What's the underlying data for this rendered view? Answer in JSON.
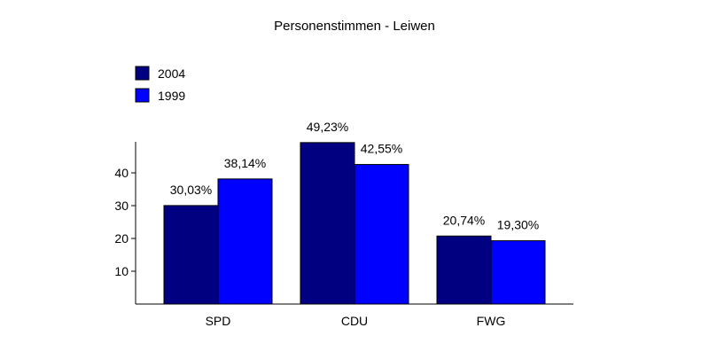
{
  "chart_data": {
    "type": "bar",
    "title": "Personenstimmen - Leiwen",
    "categories": [
      "SPD",
      "CDU",
      "FWG"
    ],
    "series": [
      {
        "name": "2004",
        "values": [
          30.03,
          49.23,
          20.74
        ],
        "labels": [
          "30,03%",
          "49,23%",
          "20,74%"
        ],
        "color": "#000080"
      },
      {
        "name": "1999",
        "values": [
          38.14,
          42.55,
          19.3
        ],
        "labels": [
          "38,14%",
          "42,55%",
          "19,30%"
        ],
        "color": "#0000ff"
      }
    ],
    "yticks": [
      10,
      20,
      30,
      40
    ],
    "ytick_labels": [
      "10",
      "20",
      "30",
      "40"
    ],
    "ylim": [
      0,
      50
    ],
    "xlabel": "",
    "ylabel": "",
    "grid": false,
    "legend_position": "top-left"
  }
}
